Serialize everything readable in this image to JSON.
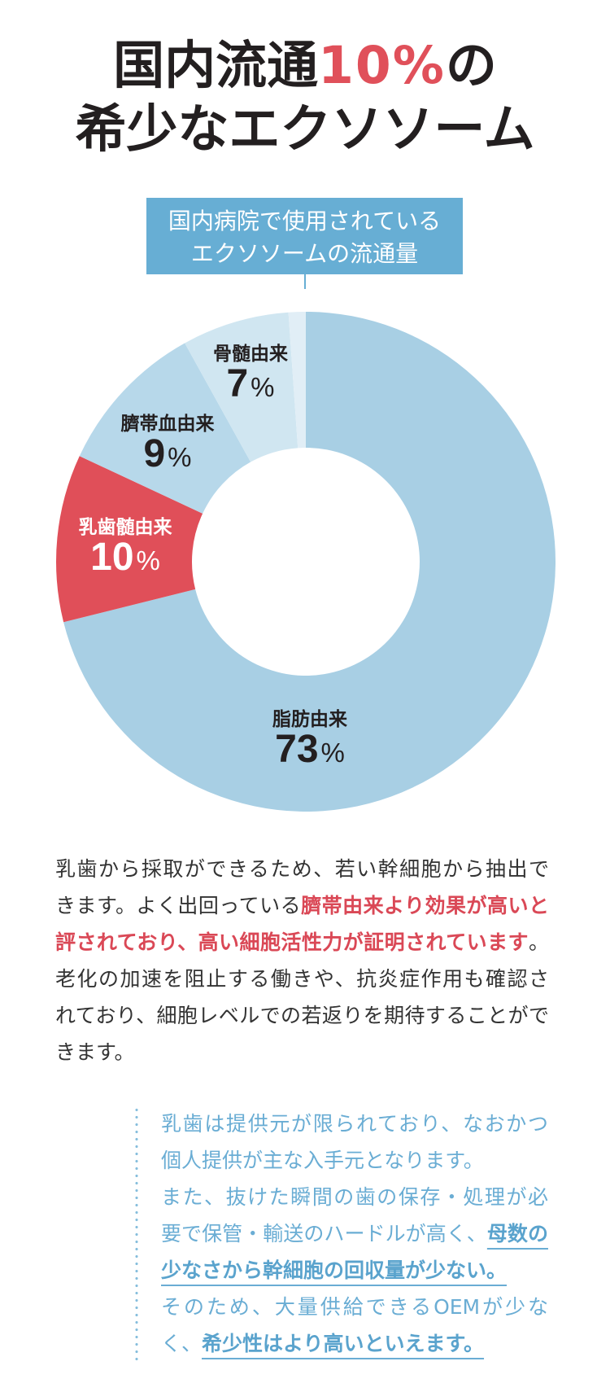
{
  "title": {
    "line1_prefix": "国内流通",
    "line1_highlight": "10%",
    "line1_suffix": "の",
    "line2": "希少なエクソソーム"
  },
  "chart_header": {
    "line1": "国内病院で使用されている",
    "line2": "エクソソームの流通量"
  },
  "colors": {
    "accent_red": "#e0505a",
    "brand_blue": "#67aed4",
    "text_dark": "#231f20",
    "note_blue": "#6aadd4"
  },
  "chart_data": {
    "type": "pie",
    "variant": "donut",
    "title": "国内病院で使用されているエクソソームの流通量",
    "unit": "%",
    "categories": [
      "脂肪由来",
      "乳歯髄由来",
      "臍帯血由来",
      "骨髄由来"
    ],
    "values": [
      73,
      10,
      9,
      7
    ],
    "start": "top",
    "direction": "clockwise",
    "legend": "none (labels inside slices)",
    "slices": [
      {
        "label": "脂肪由来",
        "value": 73,
        "color": "#a8cfe4",
        "sweep_deg": 256
      },
      {
        "label": "乳歯髄由来",
        "value": 10,
        "color": "#e04f59",
        "sweep_deg": 39,
        "highlight": true
      },
      {
        "label": "臍帯血由来",
        "value": 9,
        "color": "#b7d8ea",
        "sweep_deg": 36
      },
      {
        "label": "骨髄由来",
        "value": 7,
        "color": "#d0e6f1",
        "sweep_deg": 25
      },
      {
        "label": null,
        "value": null,
        "color": "#e1eef6",
        "sweep_deg": 4
      }
    ]
  },
  "body": {
    "lines": [
      [
        {
          "text": "乳歯から採取ができるため、若い幹細胞から抽出で"
        }
      ],
      [
        {
          "text": "きます。よく出回っている"
        },
        {
          "text": "臍帯由来より効果が高いと"
        }
      ],
      [
        {
          "text": "評されており、高い細胞活性力が証明されています"
        },
        {
          "text": "。"
        }
      ],
      [
        {
          "text": "老化の加速を阻止する働きや、抗炎症作用も確認さ"
        }
      ],
      [
        {
          "text": "れており、細胞レベルでの若返りを期待することがで"
        }
      ],
      [
        {
          "text": "きます。"
        }
      ]
    ]
  },
  "note": {
    "lines": [
      [
        {
          "text": "乳歯は提供元が限られており、なおかつ"
        }
      ],
      [
        {
          "text": "個人提供が主な入手元となります。"
        }
      ],
      [
        {
          "text": "また、抜けた瞬間の歯の保存・処理が必"
        }
      ],
      [
        {
          "text": "要で保管・輸送のハードルが高く、"
        },
        {
          "text": "母数の"
        }
      ],
      [
        {
          "text": "少なさから幹細胞の回収量が少ない。"
        }
      ],
      [
        {
          "text": "そのため、大量供給できるOEMが少な"
        }
      ],
      [
        {
          "text": "く、"
        },
        {
          "text": "希少性はより高いといえます。"
        }
      ]
    ]
  }
}
